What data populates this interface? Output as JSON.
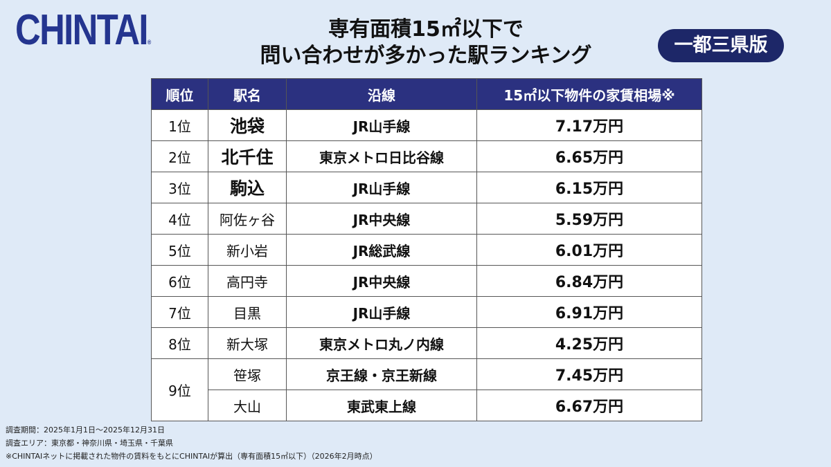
{
  "logo": {
    "text": "CHINTAI",
    "mark": "®"
  },
  "title": [
    "専有面積15㎡以下で",
    "問い合わせが多かった駅ランキング"
  ],
  "badge": "一都三県版",
  "table": {
    "header": [
      "順位",
      "駅名",
      "沿線",
      "15㎡以下物件の家賃相場※"
    ],
    "groups": [
      {
        "rank": "1位",
        "entries": [
          {
            "station": "池袋",
            "line": "JR山手線",
            "rent": "7.17万円"
          }
        ]
      },
      {
        "rank": "2位",
        "entries": [
          {
            "station": "北千住",
            "line": "東京メトロ日比谷線",
            "rent": "6.65万円"
          }
        ]
      },
      {
        "rank": "3位",
        "entries": [
          {
            "station": "駒込",
            "line": "JR山手線",
            "rent": "6.15万円"
          }
        ]
      },
      {
        "rank": "4位",
        "entries": [
          {
            "station": "阿佐ヶ谷",
            "line": "JR中央線",
            "rent": "5.59万円"
          }
        ]
      },
      {
        "rank": "5位",
        "entries": [
          {
            "station": "新小岩",
            "line": "JR総武線",
            "rent": "6.01万円"
          }
        ]
      },
      {
        "rank": "6位",
        "entries": [
          {
            "station": "高円寺",
            "line": "JR中央線",
            "rent": "6.84万円"
          }
        ]
      },
      {
        "rank": "7位",
        "entries": [
          {
            "station": "目黒",
            "line": "JR山手線",
            "rent": "6.91万円"
          }
        ]
      },
      {
        "rank": "8位",
        "entries": [
          {
            "station": "新大塚",
            "line": "東京メトロ丸ノ内線",
            "rent": "4.25万円"
          }
        ]
      },
      {
        "rank": "9位",
        "entries": [
          {
            "station": "笹塚",
            "line": "京王線・京王新線",
            "rent": "7.45万円"
          },
          {
            "station": "大山",
            "line": "東武東上線",
            "rent": "6.67万円"
          }
        ]
      }
    ]
  },
  "notes": [
    "調査期間：2025年1月1日～2025年12月31日",
    "調査エリア：東京都・神奈川県・埼玉県・千葉県",
    "※CHINTAIネットに掲載された物件の賃料をもとにCHINTAIが算出（専有面積15㎡以下）（2026年2月時点）"
  ]
}
